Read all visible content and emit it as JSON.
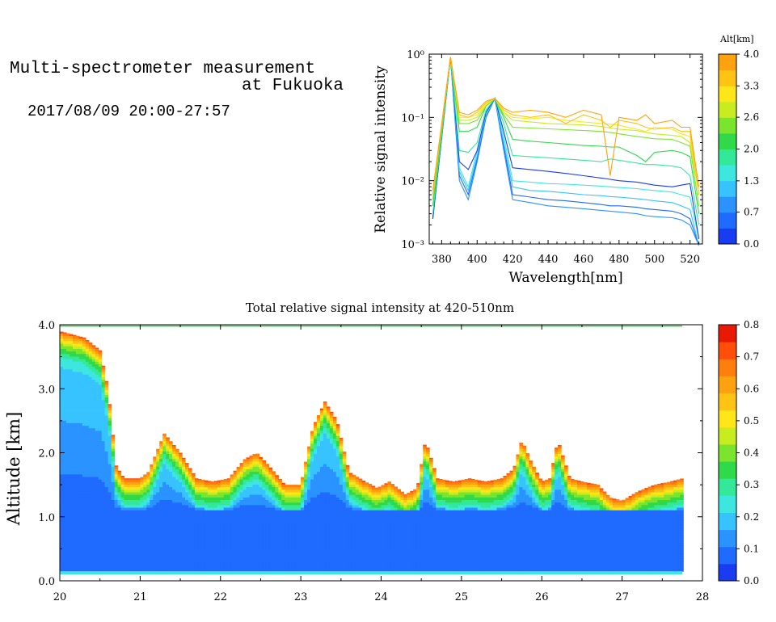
{
  "header": {
    "title_line1": "Multi-spectrometer measurement",
    "title_line2": "at Fukuoka",
    "datetime": "2017/08/09 20:00-27:57"
  },
  "colors": {
    "levels": [
      "#1a3cf0",
      "#1f6bff",
      "#2b93ff",
      "#36c3ff",
      "#3ee6e0",
      "#34e89a",
      "#2fd94a",
      "#7be52d",
      "#c8ec1f",
      "#ffe619",
      "#ffc313",
      "#ffa20f",
      "#ff7e0d",
      "#ff4d0a",
      "#e81a06"
    ],
    "white": "#ffffff"
  },
  "chart_data": [
    {
      "type": "line",
      "title": "",
      "xlabel": "Wavelength[nm]",
      "ylabel": "Relative signal intensity",
      "xlim": [
        373,
        527
      ],
      "ylim": [
        0.001,
        1
      ],
      "yscale": "log",
      "x_ticks": [
        380,
        400,
        420,
        440,
        460,
        480,
        500,
        520
      ],
      "y_ticks": [
        {
          "value": 1,
          "label": "10⁰"
        },
        {
          "value": 0.1,
          "label": "10⁻¹"
        },
        {
          "value": 0.01,
          "label": "10⁻²"
        },
        {
          "value": 0.001,
          "label": "10⁻³"
        }
      ],
      "colorbar": {
        "label": "Alt[km]",
        "range": [
          0,
          4.0
        ],
        "tick_labels": [
          "0.0",
          "0.7",
          "1.3",
          "2.0",
          "2.6",
          "3.3",
          "4.0"
        ],
        "tick_values": [
          0.0,
          0.67,
          1.33,
          2.0,
          2.67,
          3.33,
          4.0
        ]
      },
      "x": [
        375,
        385,
        390,
        395,
        400,
        405,
        410,
        415,
        420,
        430,
        440,
        450,
        460,
        470,
        475,
        480,
        490,
        495,
        500,
        510,
        515,
        520,
        525
      ],
      "series": [
        {
          "altitude": 0.2,
          "color": "#2b93ff",
          "values": [
            0.0025,
            0.9,
            0.01,
            0.005,
            0.02,
            0.1,
            0.2,
            0.03,
            0.005,
            0.0045,
            0.004,
            0.0038,
            0.0036,
            0.0034,
            0.0033,
            0.0032,
            0.003,
            0.0028,
            0.0027,
            0.0026,
            0.0024,
            0.002,
            0.0008
          ]
        },
        {
          "altitude": 0.4,
          "color": "#1f6bff",
          "values": [
            0.0025,
            0.9,
            0.012,
            0.006,
            0.022,
            0.1,
            0.2,
            0.035,
            0.006,
            0.0055,
            0.005,
            0.0048,
            0.0045,
            0.0042,
            0.004,
            0.004,
            0.0038,
            0.0036,
            0.0035,
            0.0033,
            0.003,
            0.0025,
            0.0008
          ]
        },
        {
          "altitude": 0.7,
          "color": "#36c3ff",
          "values": [
            0.0025,
            0.9,
            0.014,
            0.007,
            0.025,
            0.11,
            0.2,
            0.04,
            0.008,
            0.007,
            0.0068,
            0.0064,
            0.006,
            0.0058,
            0.0056,
            0.0055,
            0.0052,
            0.005,
            0.0048,
            0.0045,
            0.004,
            0.0035,
            0.0009
          ]
        },
        {
          "altitude": 1.0,
          "color": "#3ee6e0",
          "values": [
            0.0025,
            0.9,
            0.016,
            0.008,
            0.03,
            0.11,
            0.2,
            0.05,
            0.01,
            0.0095,
            0.009,
            0.0088,
            0.0085,
            0.0082,
            0.008,
            0.0078,
            0.0075,
            0.0072,
            0.007,
            0.0066,
            0.006,
            0.0055,
            0.0012
          ]
        },
        {
          "altitude": 1.2,
          "color": "#1a3cf0",
          "values": [
            0.0025,
            0.9,
            0.02,
            0.015,
            0.03,
            0.12,
            0.2,
            0.06,
            0.016,
            0.015,
            0.014,
            0.013,
            0.012,
            0.011,
            0.0105,
            0.01,
            0.0095,
            0.009,
            0.0085,
            0.008,
            0.0085,
            0.009,
            0.0012
          ]
        },
        {
          "altitude": 1.6,
          "color": "#34e89a",
          "values": [
            0.003,
            0.9,
            0.03,
            0.028,
            0.04,
            0.13,
            0.2,
            0.08,
            0.025,
            0.024,
            0.023,
            0.022,
            0.021,
            0.02,
            0.022,
            0.021,
            0.019,
            0.018,
            0.018,
            0.017,
            0.016,
            0.012,
            0.002
          ]
        },
        {
          "altitude": 2.0,
          "color": "#2fd94a",
          "values": [
            0.004,
            0.9,
            0.06,
            0.06,
            0.07,
            0.15,
            0.2,
            0.1,
            0.045,
            0.042,
            0.04,
            0.038,
            0.036,
            0.035,
            0.034,
            0.034,
            0.025,
            0.02,
            0.028,
            0.03,
            0.028,
            0.024,
            0.003
          ]
        },
        {
          "altitude": 2.6,
          "color": "#7be52d",
          "values": [
            0.005,
            0.9,
            0.08,
            0.08,
            0.09,
            0.15,
            0.2,
            0.11,
            0.07,
            0.068,
            0.066,
            0.064,
            0.062,
            0.06,
            0.058,
            0.055,
            0.05,
            0.048,
            0.046,
            0.045,
            0.04,
            0.035,
            0.004
          ]
        },
        {
          "altitude": 3.0,
          "color": "#c8ec1f",
          "values": [
            0.006,
            0.9,
            0.09,
            0.09,
            0.1,
            0.16,
            0.2,
            0.12,
            0.09,
            0.085,
            0.08,
            0.078,
            0.076,
            0.072,
            0.068,
            0.065,
            0.062,
            0.058,
            0.055,
            0.052,
            0.05,
            0.04,
            0.006
          ]
        },
        {
          "altitude": 3.3,
          "color": "#ffe619",
          "values": [
            0.006,
            0.9,
            0.1,
            0.1,
            0.11,
            0.16,
            0.2,
            0.12,
            0.1,
            0.095,
            0.1,
            0.09,
            0.085,
            0.08,
            0.078,
            0.075,
            0.065,
            0.06,
            0.07,
            0.065,
            0.055,
            0.05,
            0.006
          ]
        },
        {
          "altitude": 3.6,
          "color": "#ffc313",
          "values": [
            0.006,
            0.9,
            0.11,
            0.1,
            0.12,
            0.17,
            0.2,
            0.13,
            0.11,
            0.1,
            0.11,
            0.08,
            0.11,
            0.09,
            0.07,
            0.09,
            0.08,
            0.07,
            0.065,
            0.07,
            0.06,
            0.06,
            0.006
          ]
        },
        {
          "altitude": 4.0,
          "color": "#ffa20f",
          "values": [
            0.007,
            0.9,
            0.12,
            0.11,
            0.13,
            0.18,
            0.2,
            0.14,
            0.12,
            0.13,
            0.12,
            0.1,
            0.13,
            0.11,
            0.012,
            0.1,
            0.09,
            0.11,
            0.08,
            0.09,
            0.07,
            0.07,
            0.008
          ]
        }
      ]
    },
    {
      "type": "heatmap",
      "title": "Total relative signal intensity at 420-510nm",
      "xlabel": "",
      "ylabel": "Altitude [km]",
      "xlim": [
        20,
        28
      ],
      "ylim": [
        0,
        4.0
      ],
      "x_tick_labels": [
        "20",
        "21",
        "22",
        "23",
        "24",
        "25",
        "26",
        "27",
        "28"
      ],
      "y_tick_labels": [
        "0.0",
        "1.0",
        "2.0",
        "3.0",
        "4.0"
      ],
      "colorbar": {
        "range": [
          0,
          0.8
        ],
        "tick_labels": [
          "0.0",
          "0.1",
          "0.2",
          "0.3",
          "0.4",
          "0.5",
          "0.6",
          "0.7",
          "0.8"
        ]
      },
      "boundary_time": [
        20.0,
        20.3,
        20.5,
        20.6,
        20.7,
        20.8,
        21.0,
        21.1,
        21.3,
        21.5,
        21.7,
        21.9,
        22.1,
        22.3,
        22.45,
        22.6,
        22.8,
        23.0,
        23.15,
        23.3,
        23.45,
        23.6,
        23.8,
        23.95,
        24.1,
        24.3,
        24.45,
        24.55,
        24.7,
        24.9,
        25.1,
        25.3,
        25.5,
        25.65,
        25.75,
        25.85,
        26.0,
        26.1,
        26.2,
        26.35,
        26.5,
        26.7,
        26.85,
        27.0,
        27.2,
        27.4,
        27.6,
        27.75
      ],
      "boundary_altitude_km": [
        3.9,
        3.8,
        3.6,
        3.0,
        1.8,
        1.6,
        1.6,
        1.7,
        2.3,
        2.0,
        1.6,
        1.55,
        1.6,
        1.9,
        2.0,
        1.8,
        1.5,
        1.5,
        2.4,
        2.8,
        2.5,
        1.7,
        1.55,
        1.45,
        1.55,
        1.35,
        1.45,
        2.2,
        1.6,
        1.55,
        1.6,
        1.55,
        1.6,
        1.75,
        2.2,
        1.9,
        1.55,
        1.6,
        2.2,
        1.6,
        1.55,
        1.5,
        1.3,
        1.25,
        1.4,
        1.5,
        1.55,
        1.6
      ]
    }
  ]
}
